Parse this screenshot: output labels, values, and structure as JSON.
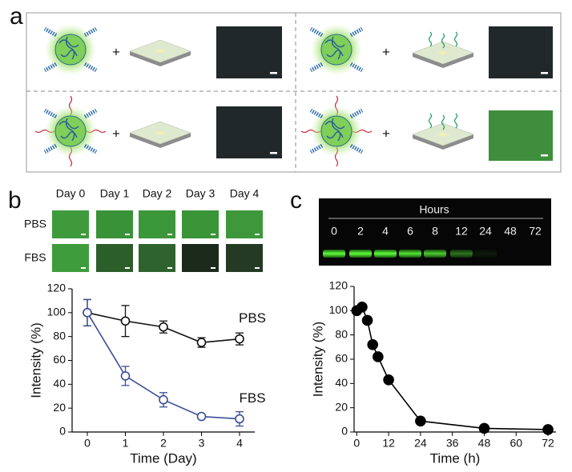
{
  "panel_labels": [
    "a",
    "b",
    "c"
  ],
  "panel_a": {
    "plus": [
      "+",
      "+",
      "+",
      "+"
    ]
  },
  "panel_b_images": {
    "columns": [
      "Day 0",
      "Day 1",
      "Day 2",
      "Day 3",
      "Day 4"
    ],
    "rows": [
      "PBS",
      "FBS"
    ]
  },
  "gel": {
    "title": "Hours",
    "lanes": [
      "0",
      "2",
      "4",
      "6",
      "8",
      "12",
      "24",
      "48",
      "72"
    ]
  },
  "chart_data": [
    {
      "type": "line",
      "xlabel": "Time (Day)",
      "ylabel": "Intensity (%)",
      "x": [
        0,
        1,
        2,
        3,
        4
      ],
      "xlim": [
        -0.4,
        4.4
      ],
      "xticks": [
        0,
        1,
        2,
        3,
        4
      ],
      "ylim": [
        0,
        120
      ],
      "yticks": [
        0,
        20,
        40,
        60,
        80,
        100,
        120
      ],
      "marker": "open",
      "series": [
        {
          "name": "PBS",
          "color": "#111111",
          "values": [
            100,
            93,
            88,
            75,
            78
          ],
          "errors": [
            11,
            13,
            5,
            4,
            5
          ]
        },
        {
          "name": "FBS",
          "color": "#3b4f98",
          "values": [
            100,
            47,
            27,
            13,
            11
          ],
          "errors": [
            11,
            8,
            6,
            1,
            6
          ]
        }
      ]
    },
    {
      "type": "line",
      "xlabel": "Time (h)",
      "ylabel": "Intensity (%)",
      "x": [
        0,
        2,
        4,
        6,
        8,
        12,
        24,
        48,
        72
      ],
      "xlim": [
        -1,
        75
      ],
      "xticks": [
        0,
        12,
        24,
        36,
        48,
        60,
        72
      ],
      "ylim": [
        0,
        120
      ],
      "yticks": [
        0,
        20,
        40,
        60,
        80,
        100,
        120
      ],
      "marker": "filled",
      "series": [
        {
          "color": "#000000",
          "values": [
            100,
            103,
            92,
            72,
            62,
            43,
            9,
            3,
            2
          ]
        }
      ]
    }
  ]
}
